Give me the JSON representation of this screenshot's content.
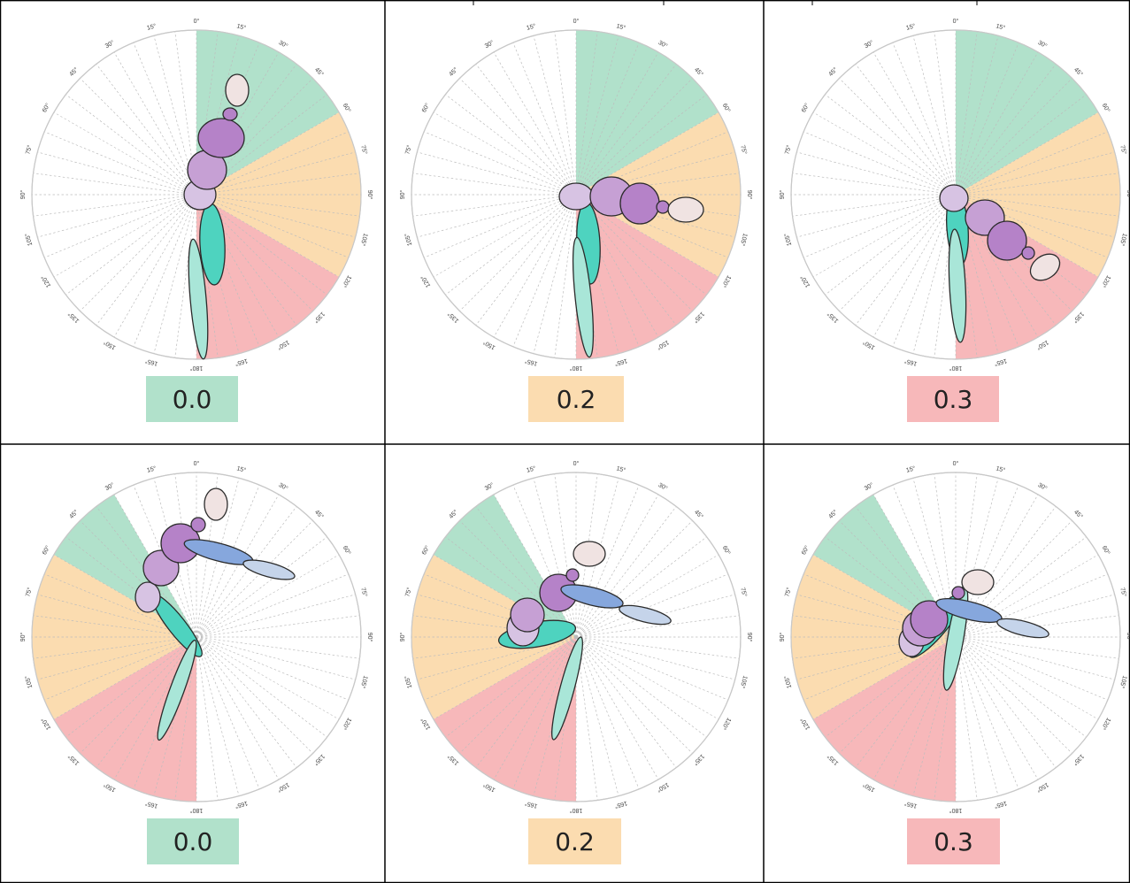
{
  "colors": {
    "green": "#b1e1cb",
    "orange": "#fbdcb0",
    "red": "#f7b8ba",
    "body_torso": "#b582c8",
    "body_chest": "#c6a0d4",
    "body_pelvis": "#d7c3e3",
    "body_head": "#f0e3e2",
    "body_thigh": "#4ed3bf",
    "body_shank": "#a9e6d8",
    "body_arm": "#86a7dd",
    "body_forearm": "#c5d4ea"
  },
  "angle_labels": [
    "0°",
    "15°",
    "30°",
    "45°",
    "60°",
    "75°",
    "90°",
    "105°",
    "120°",
    "135°",
    "150°",
    "165°",
    "180°",
    "165°",
    "150°",
    "135°",
    "120°",
    "105°",
    "90°",
    "75°",
    "60°",
    "45°",
    "30°",
    "15°"
  ],
  "panels": [
    {
      "id": "standing-green",
      "score": "0.0",
      "score_color": "green"
    },
    {
      "id": "standing-orange",
      "score": "0.2",
      "score_color": "orange"
    },
    {
      "id": "standing-red",
      "score": "0.3",
      "score_color": "red"
    },
    {
      "id": "squat-green",
      "score": "0.0",
      "score_color": "green"
    },
    {
      "id": "squat-orange",
      "score": "0.2",
      "score_color": "orange"
    },
    {
      "id": "squat-red",
      "score": "0.3",
      "score_color": "red"
    }
  ]
}
